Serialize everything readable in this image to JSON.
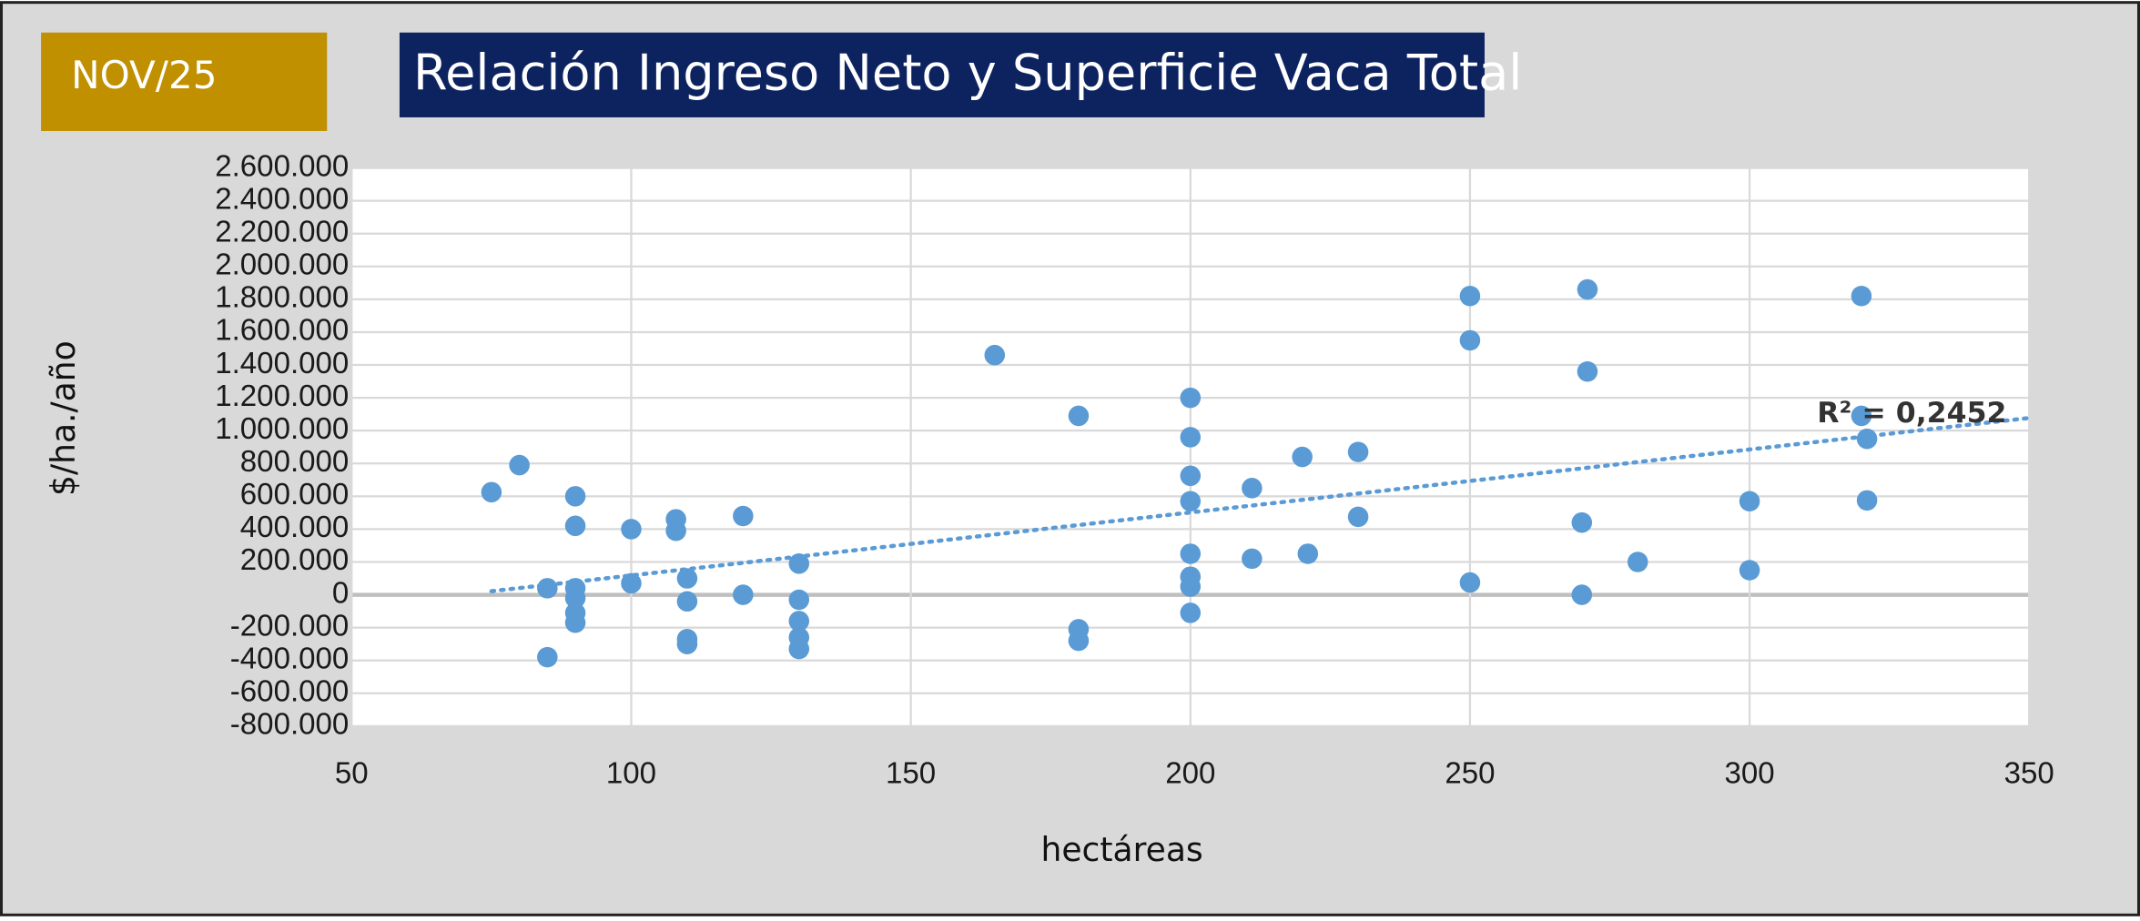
{
  "badge": "NOV/25",
  "chart_data": {
    "type": "scatter",
    "title": "Relación Ingreso Neto y Superficie Vaca Total",
    "x_label": "hectáreas",
    "y_label": "$/ha./año",
    "annotation": "R² = 0,2452",
    "trendline": true,
    "grid": true,
    "color": "#5b9bd5",
    "x": [
      75,
      80,
      85,
      85,
      90,
      90,
      90,
      90,
      90,
      90,
      100,
      100,
      108,
      108,
      110,
      110,
      110,
      110,
      120,
      120,
      130,
      130,
      130,
      130,
      130,
      165,
      180,
      180,
      180,
      200,
      200,
      200,
      200,
      200,
      200,
      200,
      200,
      211,
      211,
      220,
      221,
      230,
      230,
      250,
      250,
      250,
      271,
      271,
      270,
      270,
      280,
      300,
      300,
      320,
      320,
      321,
      321
    ],
    "values": [
      625000,
      790000,
      40000,
      -380000,
      600000,
      420000,
      40000,
      -20000,
      -110000,
      -170000,
      400000,
      70000,
      460000,
      390000,
      100000,
      -40000,
      -270000,
      -300000,
      480000,
      0,
      190000,
      -30000,
      -160000,
      -260000,
      -330000,
      1460000,
      1090000,
      -210000,
      -280000,
      1200000,
      960000,
      725000,
      570000,
      250000,
      110000,
      50000,
      -110000,
      650000,
      220000,
      840000,
      250000,
      870000,
      475000,
      1820000,
      1550000,
      75000,
      1860000,
      1360000,
      440000,
      0,
      200000,
      570000,
      150000,
      1820000,
      1090000,
      950000,
      575000
    ],
    "xlim": [
      50,
      350
    ],
    "xticks": [
      50,
      100,
      150,
      200,
      250,
      300,
      350
    ],
    "ylim": [
      -800000,
      2600000
    ],
    "yticks": [
      {
        "value": -800000,
        "label": "-800.000"
      },
      {
        "value": -600000,
        "label": "-600.000"
      },
      {
        "value": -400000,
        "label": "-400.000"
      },
      {
        "value": -200000,
        "label": "-200.000"
      },
      0,
      {
        "value": 200000,
        "label": "200.000"
      },
      {
        "value": 400000,
        "label": "400.000"
      },
      {
        "value": 600000,
        "label": "600.000"
      },
      {
        "value": 800000,
        "label": "800.000"
      },
      {
        "value": 1000000,
        "label": "1.000.000"
      },
      {
        "value": 1200000,
        "label": "1.200.000"
      },
      {
        "value": 1400000,
        "label": "1.400.000"
      },
      {
        "value": 1600000,
        "label": "1.600.000"
      },
      {
        "value": 1800000,
        "label": "1.800.000"
      },
      {
        "value": 2000000,
        "label": "2.000.000"
      },
      {
        "value": 2200000,
        "label": "2.200.000"
      },
      {
        "value": 2400000,
        "label": "2.400.000"
      },
      {
        "value": 2600000,
        "label": "2.600.000"
      }
    ]
  }
}
